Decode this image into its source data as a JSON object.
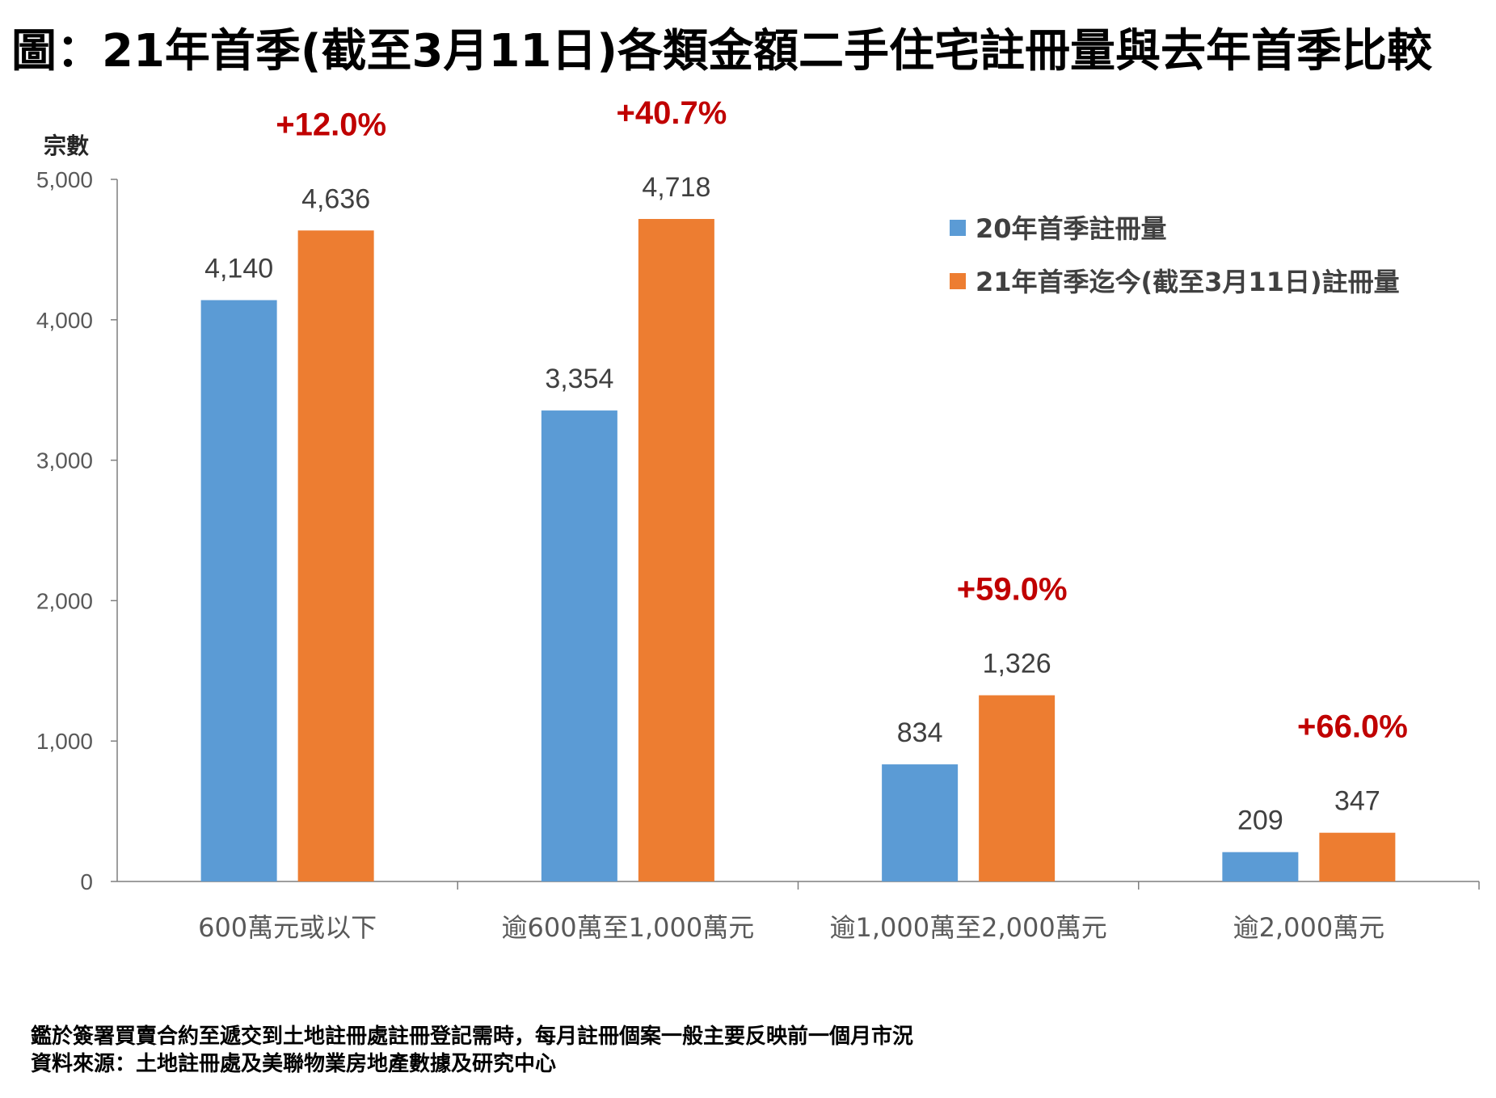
{
  "title": "圖：21年首季(截至3月11日)各類金額二手住宅註冊量與去年首季比較",
  "chart_data": {
    "type": "bar",
    "ylabel": "宗數",
    "ylim": [
      0,
      5000
    ],
    "yticks": [
      0,
      1000,
      2000,
      3000,
      4000,
      5000
    ],
    "ytick_labels": [
      "0",
      "1,000",
      "2,000",
      "3,000",
      "4,000",
      "5,000"
    ],
    "categories": [
      "600萬元或以下",
      "逾600萬至1,000萬元",
      "逾1,000萬至2,000萬元",
      "逾2,000萬元"
    ],
    "series": [
      {
        "name": "20年首季註冊量",
        "color": "#5B9BD5",
        "values": [
          4140,
          3354,
          834,
          209
        ],
        "labels": [
          "4,140",
          "3,354",
          "834",
          "209"
        ]
      },
      {
        "name": "21年首季迄今(截至3月11日)註冊量",
        "color": "#ED7D31",
        "values": [
          4636,
          4718,
          1326,
          347
        ],
        "labels": [
          "4,636",
          "4,718",
          "1,326",
          "347"
        ]
      }
    ],
    "changes": [
      "+12.0%",
      "+40.7%",
      "+59.0%",
      "+66.0%"
    ],
    "change_color": "#C00000",
    "legend_position": "top-right"
  },
  "footnotes": [
    "鑑於簽署買賣合約至遞交到土地註冊處註冊登記需時，每月註冊個案一般主要反映前一個月市況",
    "資料來源：土地註冊處及美聯物業房地產數據及研究中心"
  ]
}
